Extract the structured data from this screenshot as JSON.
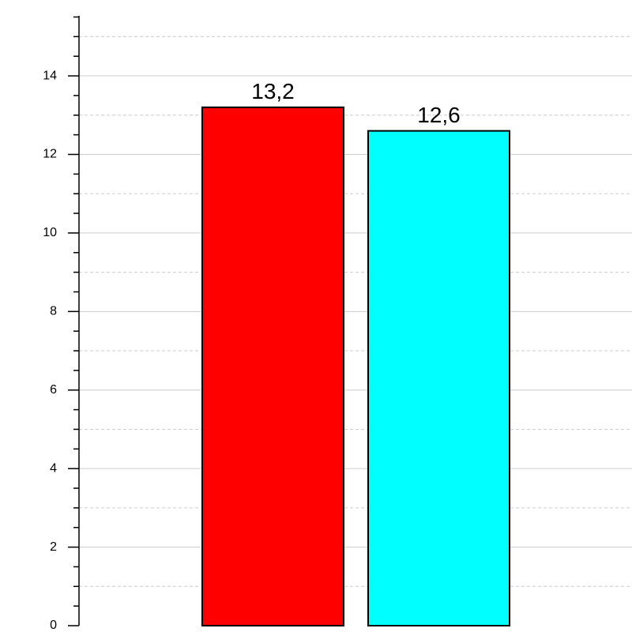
{
  "chart_data": {
    "type": "bar",
    "categories": [
      null,
      null
    ],
    "values": [
      13.2,
      12.6
    ],
    "value_labels": [
      "13,2",
      "12,6"
    ],
    "colors": [
      "#ff0000",
      "#00ffff"
    ],
    "ylim": [
      0,
      15.53
    ],
    "yticks": [
      0,
      2,
      4,
      6,
      8,
      10,
      12,
      14
    ],
    "yticks_minor": [
      0.5,
      1,
      1.5,
      2.5,
      3,
      3.5,
      4.5,
      5,
      5.5,
      6.5,
      7,
      7.5,
      8.5,
      9,
      9.5,
      10.5,
      11,
      11.5,
      12.5,
      13,
      13.5,
      14.5,
      15,
      15.5
    ],
    "grid": true
  }
}
